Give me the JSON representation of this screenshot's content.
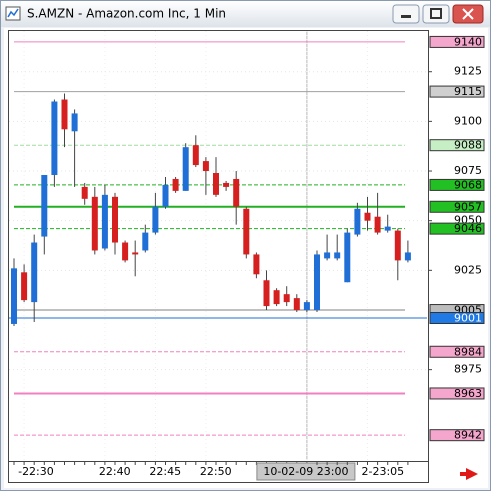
{
  "chart_data": {
    "type": "candlestick",
    "title": "S.AMZN - Amazon.com Inc, 1 Min",
    "categories": [
      null,
      "-22:30",
      null,
      null,
      null,
      null,
      null,
      null,
      null,
      "22:40",
      null,
      null,
      null,
      null,
      "22:45",
      null,
      null,
      null,
      null,
      "22:50",
      null,
      null,
      null,
      null,
      null,
      null,
      null,
      null,
      null,
      "10-02-09 23:00",
      null,
      null,
      null,
      null,
      null,
      "2-23:05",
      null,
      null,
      null,
      null
    ],
    "crosshair_at": 29,
    "open": [
      8998,
      9024,
      9009,
      9042,
      9073,
      9111,
      9095,
      9067,
      9062,
      9036,
      9062,
      9039,
      9034,
      9035,
      9044,
      9057,
      9071,
      9065,
      9088,
      9080,
      9074,
      9069,
      9071,
      9056,
      9033,
      9020,
      9015,
      9013,
      9011,
      9005,
      9005,
      9031,
      9031,
      9019,
      9043,
      9054,
      9052,
      9045,
      9045,
      9030
    ],
    "high": [
      9031,
      9028,
      9043,
      9073,
      9111,
      9114,
      9106,
      9069,
      9067,
      9068,
      9064,
      9040,
      9040,
      9048,
      9064,
      9072,
      9072,
      9089,
      9093,
      9082,
      9082,
      9070,
      9075,
      9057,
      9034,
      9025,
      9016,
      9017,
      9013,
      9010,
      9035,
      9043,
      9043,
      9046,
      9059,
      9062,
      9064,
      9053,
      9046,
      9040
    ],
    "low": [
      8997,
      9009,
      8999,
      9033,
      9067,
      9087,
      9067,
      9058,
      9033,
      9035,
      9033,
      9029,
      9022,
      9034,
      9043,
      9056,
      9064,
      9065,
      9077,
      9063,
      9062,
      9065,
      9048,
      9031,
      9021,
      9005,
      9007,
      9007,
      9004,
      9004,
      9004,
      9030,
      9030,
      9019,
      9042,
      9045,
      9043,
      9044,
      9020,
      9029
    ],
    "close": [
      9026,
      9010,
      9039,
      9073,
      9110,
      9096,
      9104,
      9061,
      9035,
      9063,
      9039,
      9030,
      9033,
      9044,
      9057,
      9068,
      9065,
      9087,
      9078,
      9075,
      9063,
      9067,
      9057,
      9033,
      9023,
      9007,
      9008,
      9009,
      9005,
      9009,
      9033,
      9034,
      9034,
      9044,
      9056,
      9050,
      9044,
      9047,
      9030,
      9034
    ],
    "up_color": "#1f6fd6",
    "down_color": "#d61f1f",
    "ylim": [
      8929,
      9146
    ],
    "yticks": [
      8975,
      9025,
      9050,
      9075,
      9100,
      9125
    ],
    "levels": [
      {
        "value": 9140,
        "color": "#f080c0",
        "box": "#f4a6cc",
        "dash": false,
        "width": 1
      },
      {
        "value": 9115,
        "color": "#a0a0a0",
        "box": "#cfcfcf",
        "dash": false,
        "width": 1
      },
      {
        "value": 9088,
        "color": "#a0dca0",
        "box": "#c6efc6",
        "dash": true,
        "width": 1
      },
      {
        "value": 9068,
        "color": "#22b022",
        "box": "#22c022",
        "dash": true,
        "width": 1
      },
      {
        "value": 9057,
        "color": "#22b022",
        "box": "#22c022",
        "dash": false,
        "width": 2
      },
      {
        "value": 9046,
        "color": "#22b022",
        "box": "#22c022",
        "dash": true,
        "width": 1
      },
      {
        "value": 9005,
        "color": "#808080",
        "box": "#bdbdbd",
        "dash": false,
        "width": 1
      },
      {
        "value": 9001,
        "color": "#1f6fd6",
        "box": "#1f7ae6",
        "dash": false,
        "width": 1,
        "text_color": "#ffffff"
      },
      {
        "value": 8984,
        "color": "#f080c0",
        "box": "#f4a6cc",
        "dash": true,
        "width": 1
      },
      {
        "value": 8963,
        "color": "#f080c0",
        "box": "#f4a6cc",
        "dash": false,
        "width": 2
      },
      {
        "value": 8942,
        "color": "#f080c0",
        "box": "#f4a6cc",
        "dash": true,
        "width": 1
      }
    ]
  }
}
